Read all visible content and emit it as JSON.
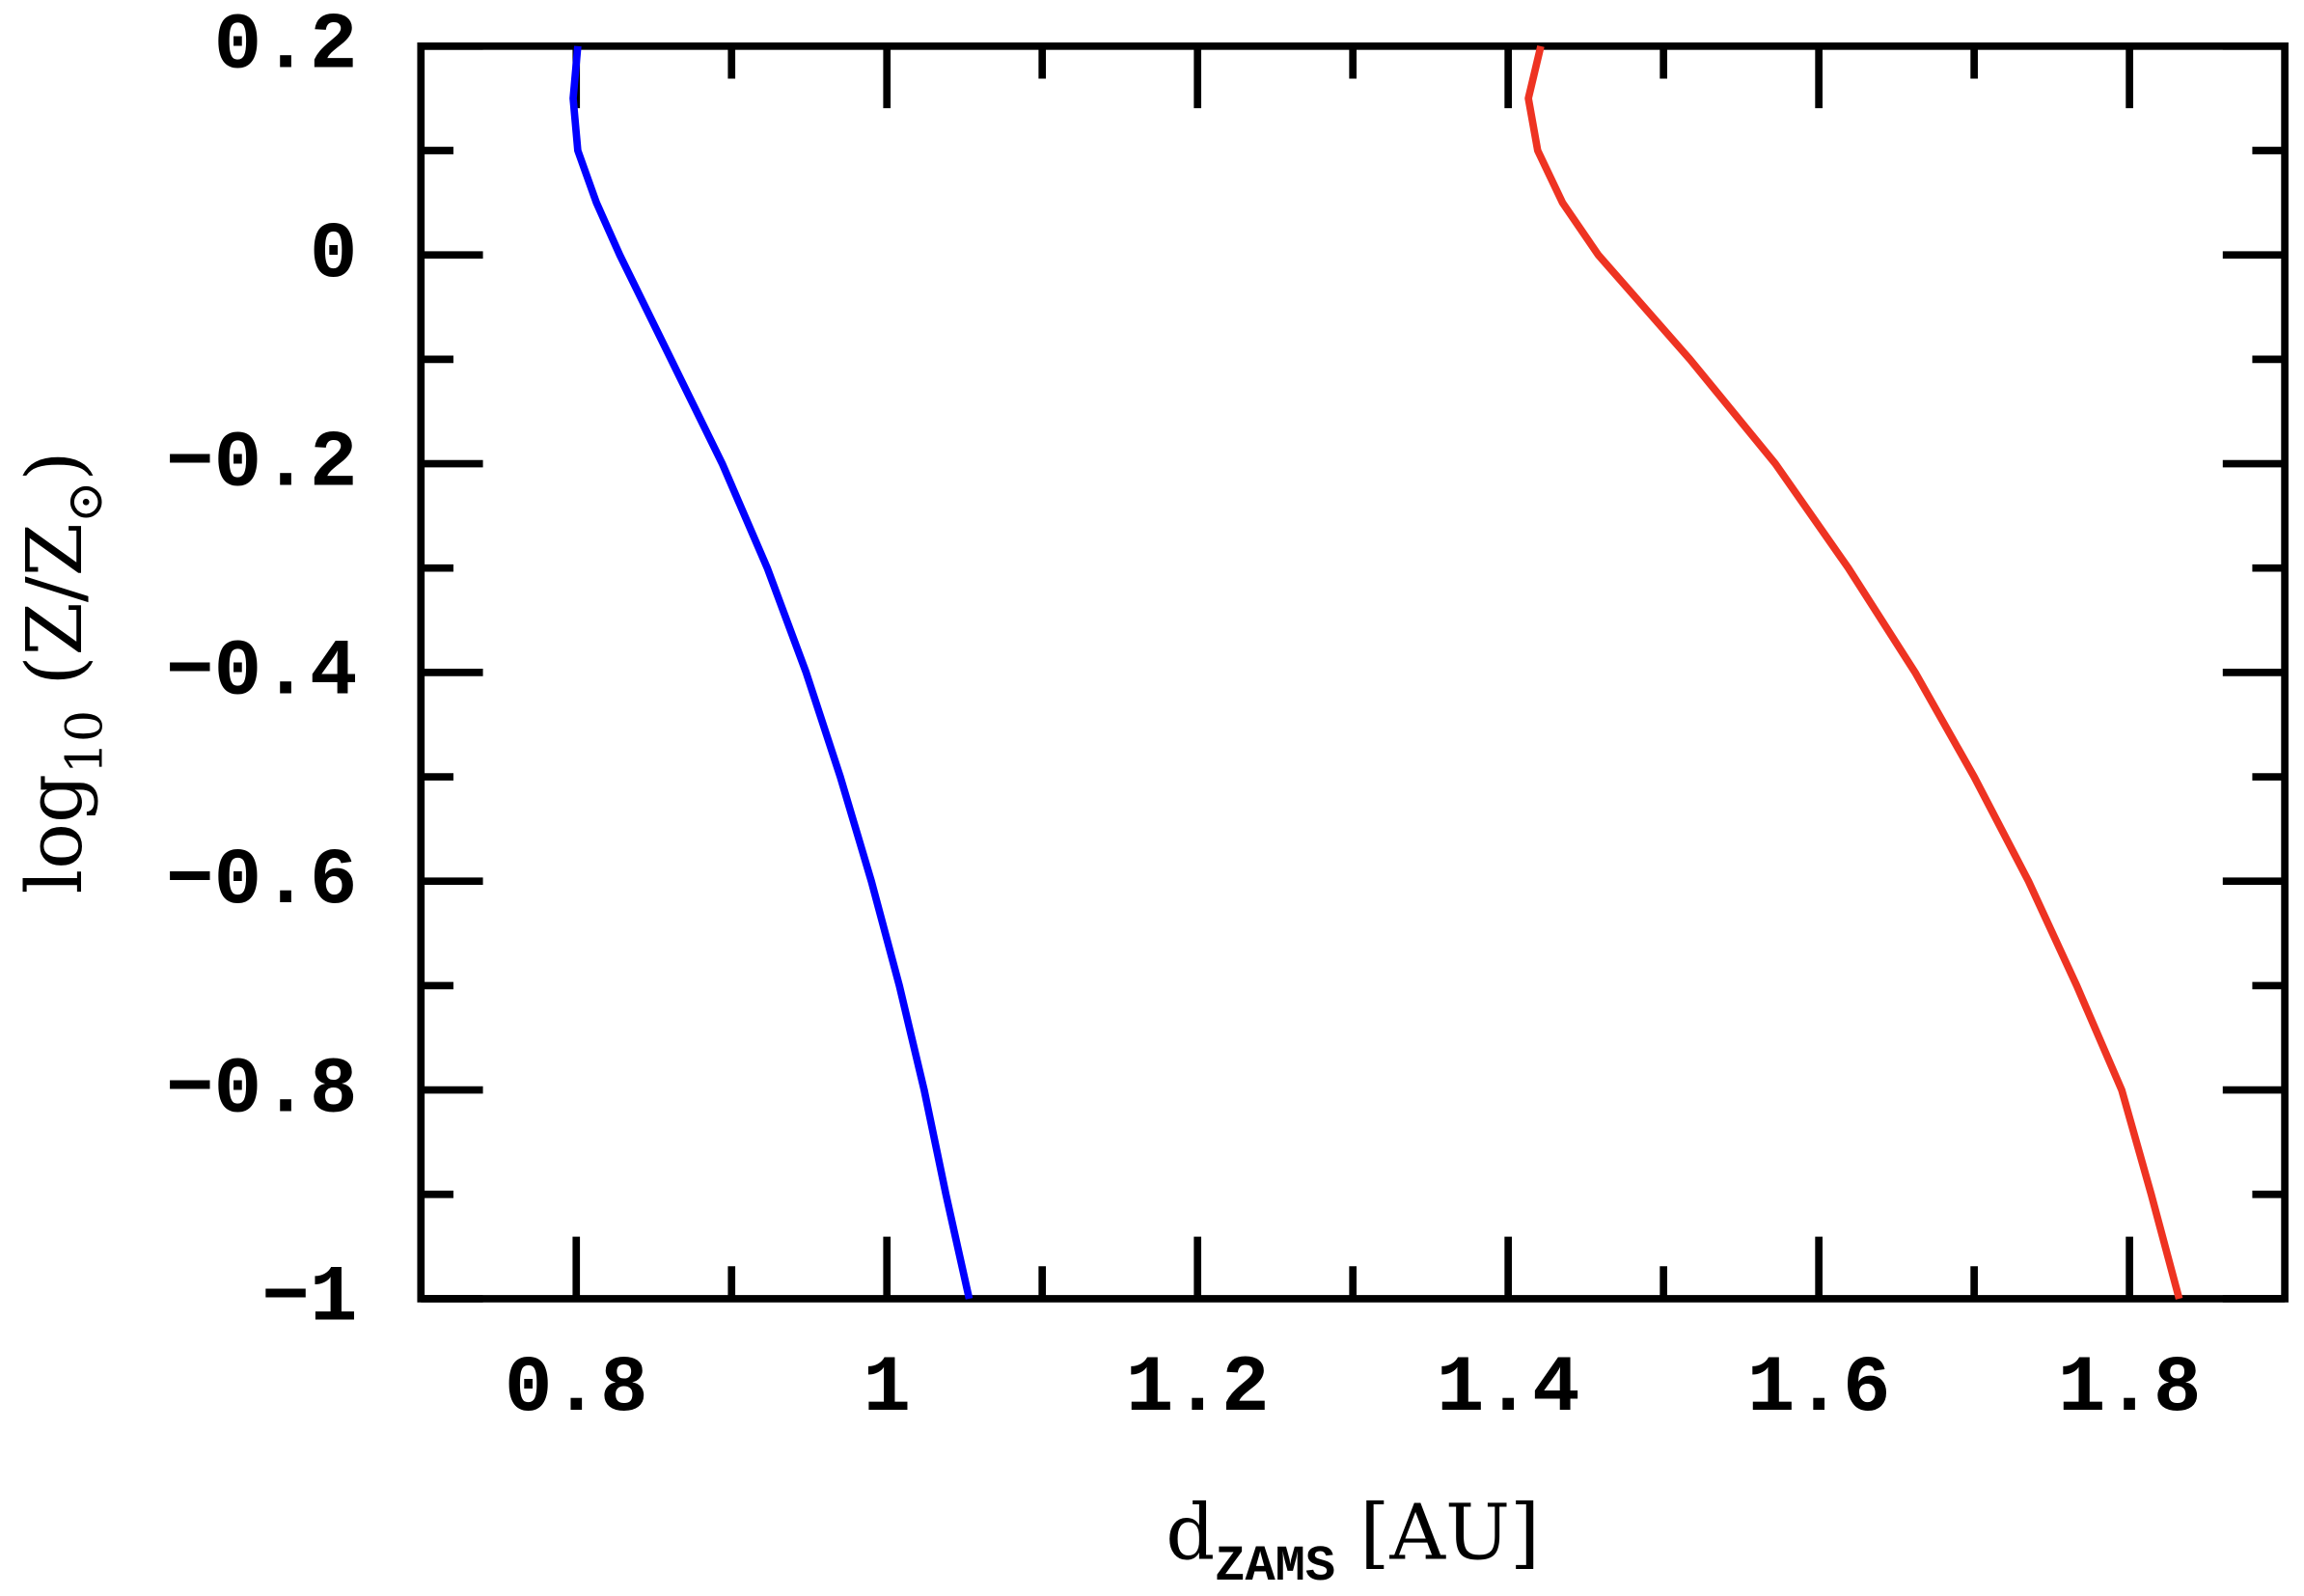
{
  "chart_data": {
    "type": "line",
    "x_label": {
      "main": "d",
      "sub": "ZAMS",
      "rest": " [AU]"
    },
    "y_label": {
      "main": "log",
      "sub": "10",
      "rest": " (Z/Z",
      "sub2": "⊙",
      "end": ")"
    },
    "xlim": [
      0.7,
      1.9
    ],
    "ylim": [
      -1,
      0.2
    ],
    "xticks": [
      0.8,
      1,
      1.2,
      1.4,
      1.6,
      1.8
    ],
    "xminorticks": [
      0.9,
      1.1,
      1.3,
      1.5,
      1.7
    ],
    "yticks": [
      {
        "value": -1,
        "label": "−1"
      },
      {
        "value": -0.8,
        "label": "−0.8"
      },
      {
        "value": -0.6,
        "label": "−0.6"
      },
      {
        "value": -0.4,
        "label": "−0.4"
      },
      {
        "value": -0.2,
        "label": "−0.2"
      },
      0,
      0.2
    ],
    "yminorticks": [
      -0.9,
      -0.7,
      -0.5,
      -0.3,
      -0.1,
      0.1
    ],
    "series": [
      {
        "color": "#0000ff",
        "x": [
          0.801,
          0.798,
          0.801,
          0.813,
          0.828,
          0.861,
          0.894,
          0.923,
          0.948,
          0.97,
          0.99,
          1.008,
          1.024,
          1.038,
          1.053
        ],
        "y": [
          0.2,
          0.15,
          0.1,
          0.05,
          0,
          -0.1,
          -0.2,
          -0.3,
          -0.4,
          -0.5,
          -0.6,
          -0.7,
          -0.8,
          -0.9,
          -1
        ]
      },
      {
        "color": "#ee3322",
        "x": [
          1.421,
          1.413,
          1.419,
          1.435,
          1.458,
          1.517,
          1.572,
          1.619,
          1.662,
          1.7,
          1.735,
          1.766,
          1.795,
          1.814,
          1.832
        ],
        "y": [
          0.2,
          0.15,
          0.1,
          0.05,
          0,
          -0.1,
          -0.2,
          -0.3,
          -0.4,
          -0.5,
          -0.6,
          -0.7,
          -0.8,
          -0.9,
          -1
        ]
      }
    ]
  }
}
